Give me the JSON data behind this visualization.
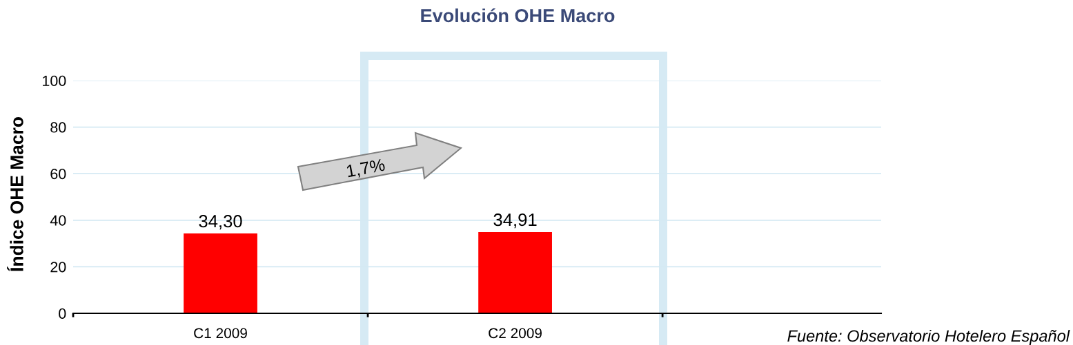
{
  "chart_data": {
    "type": "bar",
    "title": "Evolución OHE Macro",
    "ylabel": "Índice OHE Macro",
    "categories": [
      "C1 2009",
      "C2 2009",
      null
    ],
    "values": [
      34.3,
      34.91,
      null
    ],
    "color": "#ff0000",
    "value_labels": [
      "34,30",
      "34,91",
      null
    ],
    "ylim": [
      0,
      100
    ],
    "yticks": [
      0,
      20,
      40,
      60,
      80,
      100
    ],
    "grid": "y",
    "annotations": [
      "1,7%",
      "Fuente: Observatorio Hotelero Español"
    ]
  }
}
